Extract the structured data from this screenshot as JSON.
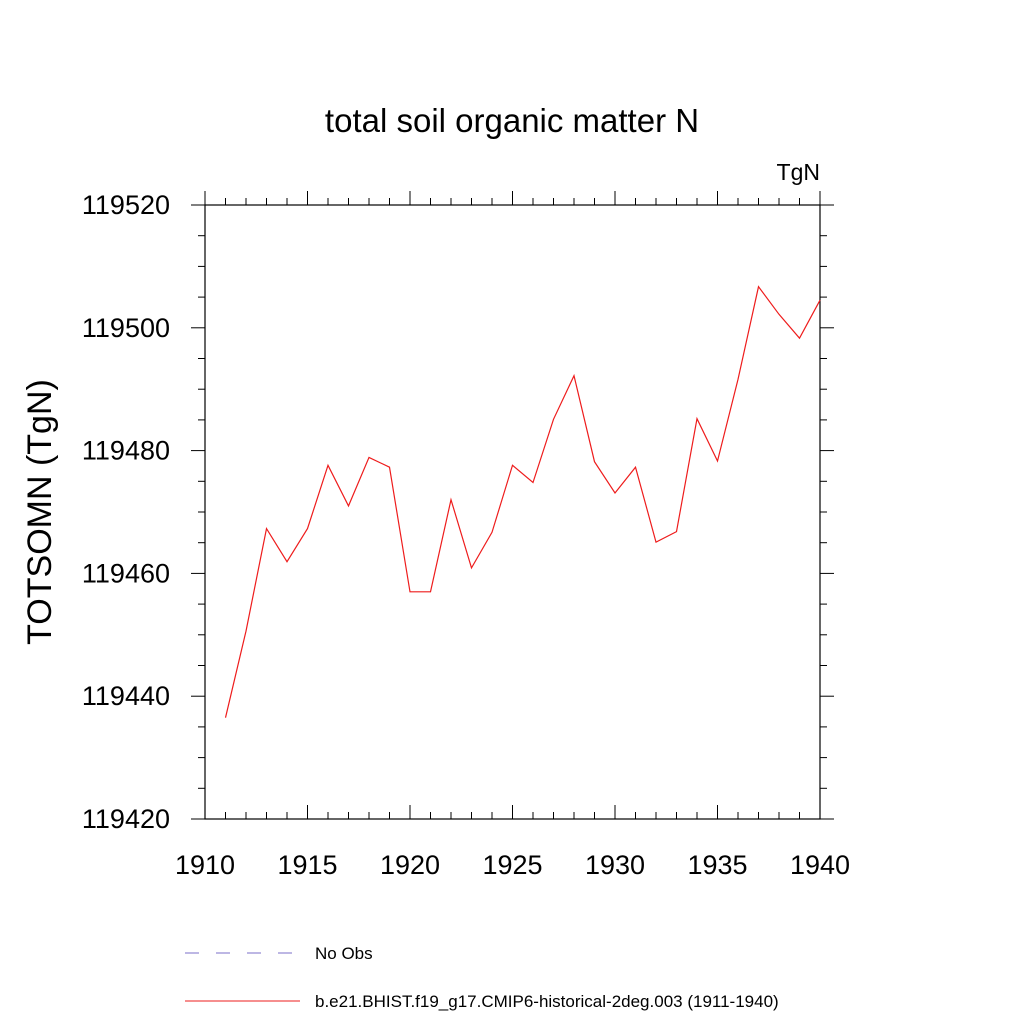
{
  "chart_data": {
    "type": "line",
    "title": "total soil organic matter N",
    "units_label": "TgN",
    "ylabel": "TOTSOMN  (TgN)",
    "xlabel": "",
    "xlim": [
      1910,
      1940
    ],
    "ylim": [
      119420,
      119520
    ],
    "x_ticks": [
      1910,
      1915,
      1920,
      1925,
      1930,
      1935,
      1940
    ],
    "y_ticks": [
      119420,
      119440,
      119460,
      119480,
      119500,
      119520
    ],
    "grid": false,
    "legend_position": "bottom",
    "series": [
      {
        "name": "No Obs",
        "color": "#7b6fc9",
        "style": "dashed",
        "x": [],
        "y": []
      },
      {
        "name": "b.e21.BHIST.f19_g17.CMIP6-historical-2deg.003 (1911-1940)",
        "color": "#ee1c1c",
        "style": "solid",
        "x": [
          1911,
          1912,
          1913,
          1914,
          1915,
          1916,
          1917,
          1918,
          1919,
          1920,
          1921,
          1922,
          1923,
          1924,
          1925,
          1926,
          1927,
          1928,
          1929,
          1930,
          1931,
          1932,
          1933,
          1934,
          1935,
          1936,
          1937,
          1938,
          1939,
          1940
        ],
        "y": [
          119436.5,
          119450.6,
          119467.3,
          119461.9,
          119467.3,
          119477.6,
          119471.0,
          119478.9,
          119477.3,
          119457.0,
          119457.0,
          119472.0,
          119460.9,
          119466.7,
          119477.6,
          119474.8,
          119485.1,
          119492.2,
          119478.2,
          119473.1,
          119477.3,
          119465.1,
          119466.8,
          119485.2,
          119478.3,
          119491.6,
          119506.7,
          119502.2,
          119498.3,
          119504.5
        ]
      }
    ]
  }
}
